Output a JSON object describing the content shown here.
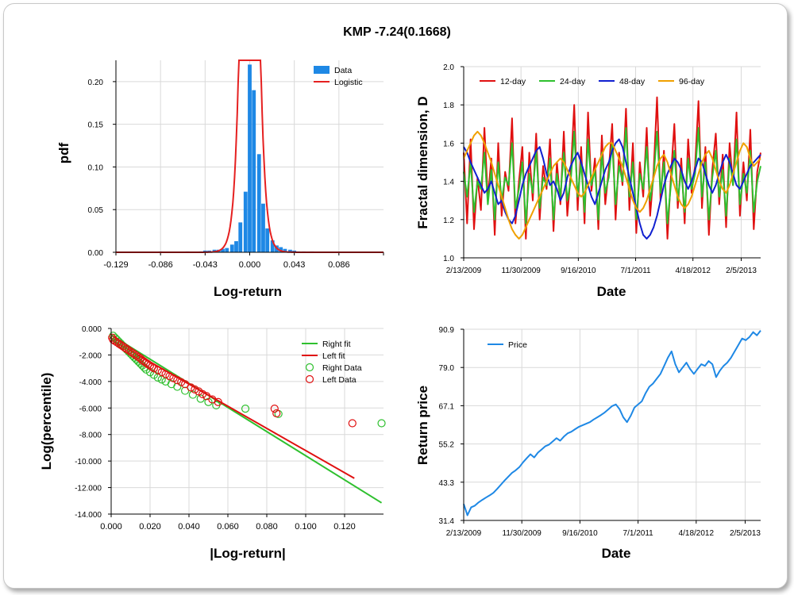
{
  "title": "KMP -7.24(0.1668)",
  "chart_data": [
    {
      "id": "pdf",
      "type": "bar",
      "xlabel": "Log-return",
      "ylabel": "pdf",
      "xlim": [
        -0.129,
        0.129
      ],
      "ylim": [
        0,
        0.225
      ],
      "xticks": [
        "-0.129",
        "-0.086",
        "-0.043",
        "0.000",
        "0.043",
        "0.086"
      ],
      "xtick_values": [
        -0.129,
        -0.086,
        -0.043,
        0.0,
        0.043,
        0.086
      ],
      "yticks": [
        "0.00",
        "0.05",
        "0.10",
        "0.15",
        "0.20"
      ],
      "ytick_values": [
        0,
        0.05,
        0.1,
        0.15,
        0.2
      ],
      "grid": true,
      "legend": {
        "placement": "top-right",
        "entries": [
          {
            "label": "Data",
            "color": "#1e88e5",
            "kind": "bar"
          },
          {
            "label": "Logistic",
            "color": "#e52020",
            "kind": "line"
          }
        ]
      },
      "bin_width": 0.0043,
      "bins": [
        {
          "x": -0.086,
          "y": 0.001
        },
        {
          "x": -0.06,
          "y": 0.001
        },
        {
          "x": -0.047,
          "y": 0.001
        },
        {
          "x": -0.043,
          "y": 0.002
        },
        {
          "x": -0.039,
          "y": 0.002
        },
        {
          "x": -0.034,
          "y": 0.003
        },
        {
          "x": -0.03,
          "y": 0.003
        },
        {
          "x": -0.026,
          "y": 0.004
        },
        {
          "x": -0.022,
          "y": 0.005
        },
        {
          "x": -0.017,
          "y": 0.009
        },
        {
          "x": -0.013,
          "y": 0.013
        },
        {
          "x": -0.009,
          "y": 0.035
        },
        {
          "x": -0.004,
          "y": 0.071
        },
        {
          "x": 0.0,
          "y": 0.22
        },
        {
          "x": 0.004,
          "y": 0.19
        },
        {
          "x": 0.009,
          "y": 0.115
        },
        {
          "x": 0.013,
          "y": 0.057
        },
        {
          "x": 0.017,
          "y": 0.028
        },
        {
          "x": 0.022,
          "y": 0.014
        },
        {
          "x": 0.026,
          "y": 0.008
        },
        {
          "x": 0.03,
          "y": 0.006
        },
        {
          "x": 0.034,
          "y": 0.004
        },
        {
          "x": 0.039,
          "y": 0.003
        },
        {
          "x": 0.043,
          "y": 0.002
        },
        {
          "x": 0.047,
          "y": 0.001
        },
        {
          "x": 0.052,
          "y": 0.001
        },
        {
          "x": 0.06,
          "y": 0.001
        },
        {
          "x": 0.069,
          "y": 0.0005
        }
      ],
      "fit": {
        "name": "Logistic",
        "mu": 0.0,
        "s": 0.0039
      }
    },
    {
      "id": "fractal",
      "type": "line",
      "xlabel": "Date",
      "ylabel": "Fractal dimension, D",
      "ylim": [
        1.0,
        2.0
      ],
      "yticks": [
        "1.0",
        "1.2",
        "1.4",
        "1.6",
        "1.8",
        "2.0"
      ],
      "ytick_values": [
        1.0,
        1.2,
        1.4,
        1.6,
        1.8,
        2.0
      ],
      "xticks": [
        "2/13/2009",
        "11/30/2009",
        "9/16/2010",
        "7/1/2011",
        "4/18/2012",
        "2/5/2013"
      ],
      "xtick_fracs": [
        0,
        0.2065,
        0.413,
        0.6195,
        0.826,
        1.0
      ],
      "x_range_fracs": [
        0,
        1.07
      ],
      "grid": true,
      "legend": {
        "placement": "top-left"
      },
      "series": [
        {
          "name": "12-day",
          "color": "#e01010",
          "values": [
            1.55,
            1.18,
            1.62,
            1.15,
            1.42,
            1.25,
            1.68,
            1.31,
            1.52,
            1.12,
            1.6,
            1.22,
            1.45,
            1.35,
            1.73,
            1.18,
            1.4,
            1.58,
            1.1,
            1.55,
            1.3,
            1.65,
            1.2,
            1.48,
            1.36,
            1.62,
            1.14,
            1.5,
            1.28,
            1.66,
            1.22,
            1.44,
            1.8,
            1.25,
            1.58,
            1.18,
            1.76,
            1.35,
            1.52,
            1.15,
            1.64,
            1.28,
            1.46,
            1.7,
            1.2,
            1.55,
            1.38,
            1.78,
            1.25,
            1.6,
            1.13,
            1.5,
            1.32,
            1.68,
            1.22,
            1.45,
            1.84,
            1.3,
            1.56,
            1.1,
            1.42,
            1.7,
            1.26,
            1.52,
            1.18,
            1.62,
            1.34,
            1.48,
            1.82,
            1.26,
            1.58,
            1.12,
            1.46,
            1.65,
            1.28,
            1.54,
            1.16,
            1.6,
            1.38,
            1.76,
            1.22,
            1.5,
            1.3,
            1.67,
            1.15,
            1.45,
            1.55
          ]
        },
        {
          "name": "24-day",
          "color": "#2ec02e",
          "values": [
            1.45,
            1.32,
            1.5,
            1.24,
            1.4,
            1.36,
            1.55,
            1.28,
            1.46,
            1.2,
            1.5,
            1.3,
            1.42,
            1.38,
            1.6,
            1.26,
            1.36,
            1.5,
            1.18,
            1.44,
            1.34,
            1.56,
            1.26,
            1.42,
            1.38,
            1.52,
            1.2,
            1.44,
            1.32,
            1.55,
            1.3,
            1.4,
            1.66,
            1.32,
            1.5,
            1.24,
            1.62,
            1.38,
            1.46,
            1.2,
            1.55,
            1.34,
            1.42,
            1.6,
            1.28,
            1.48,
            1.4,
            1.68,
            1.32,
            1.5,
            1.2,
            1.44,
            1.36,
            1.58,
            1.3,
            1.42,
            1.66,
            1.34,
            1.5,
            1.18,
            1.38,
            1.56,
            1.3,
            1.46,
            1.24,
            1.52,
            1.36,
            1.44,
            1.68,
            1.32,
            1.5,
            1.2,
            1.42,
            1.56,
            1.32,
            1.46,
            1.22,
            1.52,
            1.38,
            1.62,
            1.28,
            1.44,
            1.34,
            1.56,
            1.24,
            1.4,
            1.48
          ]
        },
        {
          "name": "48-day",
          "color": "#1020d0",
          "values": [
            1.58,
            1.55,
            1.5,
            1.46,
            1.42,
            1.38,
            1.34,
            1.36,
            1.4,
            1.34,
            1.28,
            1.3,
            1.24,
            1.2,
            1.18,
            1.22,
            1.3,
            1.38,
            1.44,
            1.48,
            1.52,
            1.56,
            1.58,
            1.52,
            1.44,
            1.38,
            1.4,
            1.36,
            1.3,
            1.34,
            1.42,
            1.48,
            1.52,
            1.55,
            1.5,
            1.44,
            1.38,
            1.32,
            1.28,
            1.34,
            1.4,
            1.46,
            1.5,
            1.56,
            1.6,
            1.62,
            1.58,
            1.5,
            1.42,
            1.34,
            1.26,
            1.18,
            1.12,
            1.1,
            1.12,
            1.16,
            1.22,
            1.3,
            1.38,
            1.44,
            1.48,
            1.52,
            1.5,
            1.46,
            1.4,
            1.36,
            1.4,
            1.46,
            1.52,
            1.5,
            1.44,
            1.38,
            1.34,
            1.38,
            1.44,
            1.5,
            1.54,
            1.5,
            1.44,
            1.38,
            1.36,
            1.4,
            1.44,
            1.48,
            1.5,
            1.52,
            1.54
          ]
        },
        {
          "name": "96-day",
          "color": "#f0a000",
          "values": [
            1.52,
            1.56,
            1.6,
            1.64,
            1.66,
            1.64,
            1.6,
            1.55,
            1.5,
            1.44,
            1.38,
            1.32,
            1.26,
            1.2,
            1.15,
            1.12,
            1.1,
            1.12,
            1.16,
            1.2,
            1.24,
            1.28,
            1.32,
            1.36,
            1.4,
            1.44,
            1.48,
            1.5,
            1.52,
            1.5,
            1.46,
            1.42,
            1.38,
            1.34,
            1.32,
            1.34,
            1.38,
            1.42,
            1.46,
            1.5,
            1.54,
            1.58,
            1.6,
            1.6,
            1.56,
            1.52,
            1.48,
            1.42,
            1.36,
            1.3,
            1.26,
            1.24,
            1.26,
            1.3,
            1.36,
            1.42,
            1.48,
            1.52,
            1.54,
            1.5,
            1.44,
            1.38,
            1.32,
            1.28,
            1.26,
            1.28,
            1.32,
            1.38,
            1.44,
            1.5,
            1.54,
            1.56,
            1.52,
            1.46,
            1.4,
            1.36,
            1.34,
            1.38,
            1.44,
            1.5,
            1.56,
            1.6,
            1.58,
            1.52,
            1.48,
            1.5,
            1.52
          ]
        }
      ]
    },
    {
      "id": "tails",
      "type": "scatter",
      "xlabel": "|Log-return|",
      "ylabel": "Log(percentile)",
      "xlim": [
        0,
        0.14
      ],
      "ylim": [
        -14.0,
        0.0
      ],
      "xticks": [
        "0.000",
        "0.020",
        "0.040",
        "0.060",
        "0.080",
        "0.100",
        "0.120"
      ],
      "xtick_values": [
        0,
        0.02,
        0.04,
        0.06,
        0.08,
        0.1,
        0.12
      ],
      "yticks": [
        "0.000",
        "-2.000",
        "-4.000",
        "-6.000",
        "-8.000",
        "-10.000",
        "-12.000",
        "-14.000"
      ],
      "ytick_values": [
        0,
        -2,
        -4,
        -6,
        -8,
        -10,
        -12,
        -14
      ],
      "grid": true,
      "legend": {
        "placement": "top-right",
        "entries": [
          {
            "label": "Right fit",
            "color": "#2ec02e",
            "kind": "line"
          },
          {
            "label": "Left fit",
            "color": "#e01010",
            "kind": "line"
          },
          {
            "label": "Right Data",
            "color": "#2ec02e",
            "kind": "circle"
          },
          {
            "label": "Left Data",
            "color": "#e01010",
            "kind": "circle"
          }
        ]
      },
      "right_fit": [
        [
          0,
          -0.5
        ],
        [
          0.139,
          -13.15
        ]
      ],
      "left_fit": [
        [
          0,
          -0.85
        ],
        [
          0.125,
          -11.3
        ]
      ],
      "right_data": [
        [
          0.001,
          -0.55
        ],
        [
          0.002,
          -0.7
        ],
        [
          0.003,
          -0.85
        ],
        [
          0.004,
          -1.0
        ],
        [
          0.005,
          -1.15
        ],
        [
          0.006,
          -1.3
        ],
        [
          0.007,
          -1.45
        ],
        [
          0.008,
          -1.6
        ],
        [
          0.009,
          -1.75
        ],
        [
          0.01,
          -1.9
        ],
        [
          0.011,
          -2.05
        ],
        [
          0.012,
          -2.2
        ],
        [
          0.013,
          -2.35
        ],
        [
          0.014,
          -2.5
        ],
        [
          0.015,
          -2.65
        ],
        [
          0.016,
          -2.8
        ],
        [
          0.017,
          -2.95
        ],
        [
          0.018,
          -3.1
        ],
        [
          0.02,
          -3.3
        ],
        [
          0.022,
          -3.5
        ],
        [
          0.024,
          -3.7
        ],
        [
          0.026,
          -3.85
        ],
        [
          0.028,
          -4.0
        ],
        [
          0.031,
          -4.2
        ],
        [
          0.034,
          -4.4
        ],
        [
          0.038,
          -4.7
        ],
        [
          0.042,
          -5.0
        ],
        [
          0.046,
          -5.3
        ],
        [
          0.05,
          -5.55
        ],
        [
          0.054,
          -5.8
        ],
        [
          0.069,
          -6.05
        ],
        [
          0.086,
          -6.45
        ],
        [
          0.139,
          -7.15
        ]
      ],
      "left_data": [
        [
          0.0005,
          -0.7
        ],
        [
          0.001,
          -0.85
        ],
        [
          0.002,
          -0.95
        ],
        [
          0.003,
          -1.05
        ],
        [
          0.004,
          -1.15
        ],
        [
          0.005,
          -1.25
        ],
        [
          0.006,
          -1.35
        ],
        [
          0.007,
          -1.45
        ],
        [
          0.008,
          -1.55
        ],
        [
          0.009,
          -1.65
        ],
        [
          0.01,
          -1.75
        ],
        [
          0.011,
          -1.85
        ],
        [
          0.012,
          -1.95
        ],
        [
          0.013,
          -2.05
        ],
        [
          0.014,
          -2.15
        ],
        [
          0.015,
          -2.25
        ],
        [
          0.016,
          -2.4
        ],
        [
          0.017,
          -2.5
        ],
        [
          0.018,
          -2.6
        ],
        [
          0.019,
          -2.7
        ],
        [
          0.02,
          -2.8
        ],
        [
          0.021,
          -2.9
        ],
        [
          0.022,
          -3.0
        ],
        [
          0.024,
          -3.15
        ],
        [
          0.026,
          -3.3
        ],
        [
          0.028,
          -3.45
        ],
        [
          0.03,
          -3.6
        ],
        [
          0.032,
          -3.75
        ],
        [
          0.034,
          -3.9
        ],
        [
          0.036,
          -4.05
        ],
        [
          0.038,
          -4.2
        ],
        [
          0.041,
          -4.45
        ],
        [
          0.043,
          -4.6
        ],
        [
          0.045,
          -4.75
        ],
        [
          0.047,
          -4.95
        ],
        [
          0.049,
          -5.1
        ],
        [
          0.052,
          -5.35
        ],
        [
          0.055,
          -5.55
        ],
        [
          0.084,
          -6.05
        ],
        [
          0.085,
          -6.4
        ],
        [
          0.124,
          -7.15
        ]
      ]
    },
    {
      "id": "price",
      "type": "line",
      "xlabel": "Date",
      "ylabel": "Return price",
      "ylim": [
        31.4,
        90.9
      ],
      "yticks": [
        "31.4",
        "43.3",
        "55.2",
        "67.1",
        "79.0",
        "90.9"
      ],
      "ytick_values": [
        31.4,
        43.3,
        55.2,
        67.1,
        79.0,
        90.9
      ],
      "xticks": [
        "2/13/2009",
        "11/30/2009",
        "9/16/2010",
        "7/1/2011",
        "4/18/2012",
        "2/5/2013"
      ],
      "xtick_fracs": [
        0,
        0.2065,
        0.413,
        0.6195,
        0.826,
        1.0
      ],
      "x_range_fracs": [
        0,
        1.055
      ],
      "grid": true,
      "legend": {
        "placement": "top-left"
      },
      "series": [
        {
          "name": "Price",
          "color": "#1e88e5",
          "values": [
            36.5,
            33.0,
            35.5,
            36.0,
            37.0,
            37.8,
            38.5,
            39.2,
            40.0,
            41.2,
            42.5,
            43.8,
            45.0,
            46.2,
            47.0,
            48.0,
            49.5,
            50.8,
            52.0,
            51.0,
            52.5,
            53.5,
            54.5,
            55.0,
            56.0,
            57.0,
            56.2,
            57.5,
            58.5,
            59.0,
            59.8,
            60.5,
            61.0,
            61.5,
            62.0,
            62.8,
            63.5,
            64.2,
            65.0,
            66.0,
            67.0,
            67.5,
            66.0,
            63.5,
            62.0,
            64.0,
            66.5,
            67.5,
            68.5,
            71.0,
            73.0,
            74.0,
            75.5,
            77.0,
            79.5,
            82.0,
            84.0,
            80.0,
            77.5,
            79.0,
            80.5,
            78.5,
            77.0,
            78.5,
            80.0,
            79.5,
            81.0,
            80.0,
            76.0,
            78.0,
            79.5,
            80.5,
            82.0,
            84.0,
            86.0,
            88.0,
            87.5,
            88.5,
            90.0,
            89.0,
            90.5
          ]
        }
      ]
    }
  ]
}
